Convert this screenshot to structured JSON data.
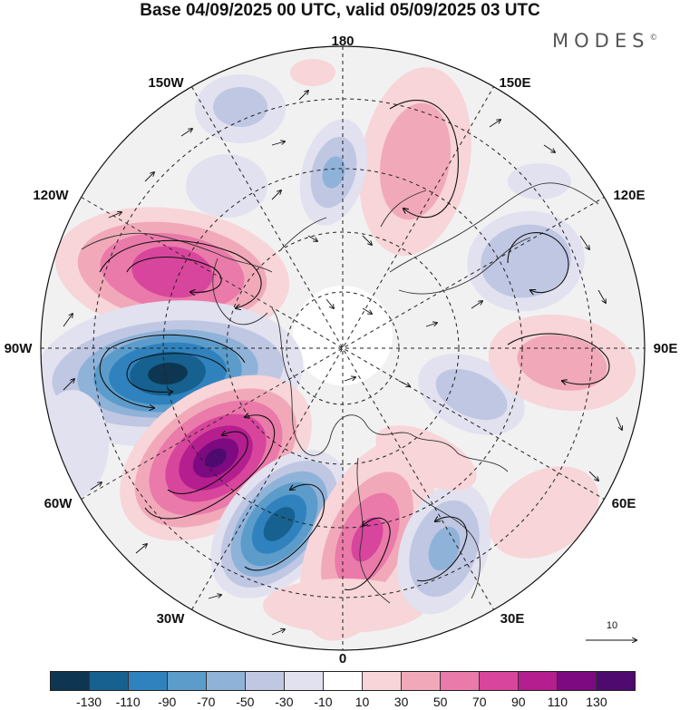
{
  "title": "Base 04/09/2025 00 UTC, valid 05/09/2025 03 UTC",
  "brand": "MODES",
  "brand_mark": "©",
  "longitude_labels": {
    "lon_180": "180",
    "lon_150e": "150E",
    "lon_120e": "120E",
    "lon_90e": "90E",
    "lon_60e": "60E",
    "lon_30e": "30E",
    "lon_0": "0",
    "lon_30w": "30W",
    "lon_60w": "60W",
    "lon_90w": "90W",
    "lon_120w": "120W",
    "lon_150w": "150W"
  },
  "vector_scale": {
    "label": "10"
  },
  "colorbar": {
    "ticks": [
      "-130",
      "-110",
      "-90",
      "-70",
      "-50",
      "-30",
      "-10",
      "10",
      "30",
      "50",
      "70",
      "90",
      "110",
      "130"
    ],
    "colors": [
      "#0e3652",
      "#16618f",
      "#2f82bd",
      "#5b9ccb",
      "#8fb2d9",
      "#bfc7e3",
      "#e2e1ef",
      "#ffffff",
      "#f7d5d8",
      "#f1a9b9",
      "#ea7aa9",
      "#d8459c",
      "#b41e8f",
      "#7d0a80",
      "#4e0a6f"
    ]
  },
  "anomaly_centers": [
    {
      "name": "pos-120w-60n",
      "value": 90
    },
    {
      "name": "neg-95w-55n",
      "value": -130
    },
    {
      "name": "pos-70w-45n",
      "value": 130
    },
    {
      "name": "neg-40w-45n",
      "value": -110
    },
    {
      "name": "pos-15w-45n",
      "value": 90
    },
    {
      "name": "neg-10e-40n",
      "value": -50
    },
    {
      "name": "pos-155e-45n",
      "value": 30
    },
    {
      "name": "neg-170e-55n",
      "value": -50
    },
    {
      "name": "neg-110e-45n",
      "value": -30
    },
    {
      "name": "pos-80e-45n",
      "value": 30
    },
    {
      "name": "neg-70e-75n",
      "value": -30
    },
    {
      "name": "pos-170w-70n",
      "value": 10
    }
  ]
}
